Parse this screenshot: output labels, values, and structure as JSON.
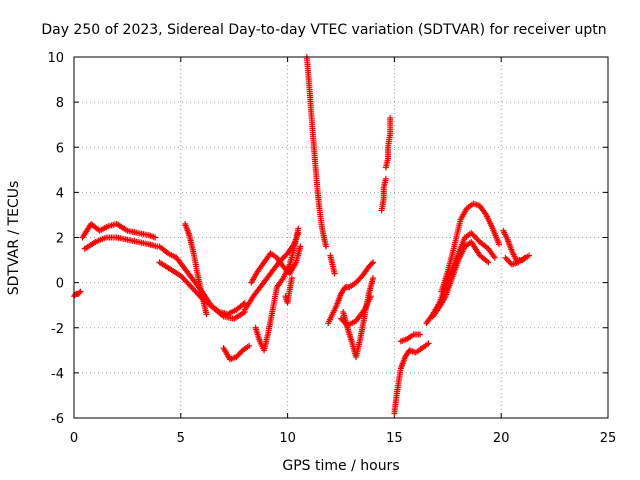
{
  "chart_data": {
    "type": "scatter",
    "title": "Day 250 of 2023, Sidereal Day-to-day VTEC variation (SDTVAR) for receiver uptn",
    "xlabel": "GPS time / hours",
    "ylabel": "SDTVAR / TECUs",
    "xlim": [
      0,
      25
    ],
    "ylim": [
      -6,
      10
    ],
    "xticks": [
      0,
      5,
      10,
      15,
      20,
      25
    ],
    "yticks": [
      -6,
      -4,
      -2,
      0,
      2,
      4,
      6,
      8,
      10
    ],
    "xtick_labels": [
      "0",
      "5",
      "10",
      "15",
      "20",
      "25"
    ],
    "ytick_labels": [
      "-6",
      "-4",
      "-2",
      "0",
      "2",
      "4",
      "6",
      "8",
      "10"
    ],
    "grid": true,
    "marker": "+",
    "color": "#ff0000",
    "series": [
      {
        "name": "SDTVAR",
        "tracks": [
          [
            [
              0.0,
              -0.6
            ],
            [
              0.1,
              -0.5
            ],
            [
              0.2,
              -0.5
            ],
            [
              0.3,
              -0.4
            ]
          ],
          [
            [
              0.4,
              2.0
            ],
            [
              0.8,
              2.6
            ],
            [
              1.2,
              2.3
            ],
            [
              1.6,
              2.5
            ],
            [
              2.0,
              2.6
            ],
            [
              2.5,
              2.3
            ],
            [
              3.0,
              2.2
            ],
            [
              3.5,
              2.1
            ],
            [
              3.8,
              2.0
            ]
          ],
          [
            [
              0.5,
              1.5
            ],
            [
              1.0,
              1.8
            ],
            [
              1.5,
              2.0
            ],
            [
              2.0,
              2.0
            ],
            [
              2.5,
              1.9
            ],
            [
              3.0,
              1.8
            ],
            [
              3.5,
              1.7
            ],
            [
              3.9,
              1.6
            ]
          ],
          [
            [
              4.0,
              1.6
            ],
            [
              4.4,
              1.3
            ],
            [
              4.8,
              1.1
            ],
            [
              5.2,
              0.6
            ],
            [
              5.6,
              0.1
            ],
            [
              6.0,
              -0.4
            ],
            [
              6.4,
              -1.0
            ],
            [
              6.8,
              -1.3
            ],
            [
              7.2,
              -1.4
            ],
            [
              7.6,
              -1.2
            ],
            [
              8.0,
              -0.9
            ]
          ],
          [
            [
              4.0,
              0.9
            ],
            [
              4.5,
              0.6
            ],
            [
              5.0,
              0.3
            ],
            [
              5.5,
              -0.2
            ],
            [
              6.0,
              -0.7
            ],
            [
              6.5,
              -1.1
            ],
            [
              7.0,
              -1.5
            ],
            [
              7.5,
              -1.6
            ],
            [
              8.0,
              -1.3
            ]
          ],
          [
            [
              5.2,
              2.6
            ],
            [
              5.4,
              2.1
            ],
            [
              5.6,
              1.3
            ],
            [
              5.8,
              0.3
            ],
            [
              6.0,
              -0.6
            ],
            [
              6.2,
              -1.4
            ]
          ],
          [
            [
              7.0,
              -2.9
            ],
            [
              7.3,
              -3.4
            ],
            [
              7.6,
              -3.3
            ],
            [
              7.9,
              -3.0
            ],
            [
              8.2,
              -2.8
            ]
          ],
          [
            [
              8.0,
              -1.2
            ],
            [
              8.4,
              -0.6
            ],
            [
              8.8,
              -0.1
            ],
            [
              9.2,
              0.4
            ],
            [
              9.6,
              0.9
            ],
            [
              10.0,
              1.3
            ],
            [
              10.3,
              1.7
            ],
            [
              10.5,
              2.2
            ]
          ],
          [
            [
              8.3,
              0.0
            ],
            [
              8.6,
              0.5
            ],
            [
              8.9,
              0.9
            ],
            [
              9.2,
              1.3
            ],
            [
              9.5,
              1.1
            ],
            [
              9.8,
              0.7
            ],
            [
              10.1,
              0.4
            ],
            [
              10.4,
              0.9
            ],
            [
              10.6,
              1.6
            ]
          ],
          [
            [
              8.5,
              -2.0
            ],
            [
              8.7,
              -2.6
            ],
            [
              8.9,
              -3.0
            ],
            [
              9.1,
              -2.2
            ],
            [
              9.3,
              -1.2
            ],
            [
              9.5,
              -0.2
            ],
            [
              9.8,
              0.2
            ],
            [
              10.1,
              0.8
            ],
            [
              10.3,
              1.5
            ],
            [
              10.5,
              2.4
            ]
          ],
          [
            [
              9.9,
              -0.6
            ],
            [
              10.0,
              -0.9
            ],
            [
              10.1,
              -0.3
            ],
            [
              10.2,
              0.2
            ]
          ],
          [
            [
              10.9,
              10.0
            ],
            [
              11.0,
              8.9
            ],
            [
              11.1,
              7.6
            ],
            [
              11.2,
              6.4
            ],
            [
              11.3,
              5.2
            ],
            [
              11.4,
              4.1
            ],
            [
              11.5,
              3.2
            ],
            [
              11.6,
              2.5
            ],
            [
              11.7,
              2.0
            ],
            [
              11.8,
              1.6
            ]
          ],
          [
            [
              12.0,
              1.2
            ],
            [
              12.1,
              0.8
            ],
            [
              12.2,
              0.4
            ]
          ],
          [
            [
              11.9,
              -1.8
            ],
            [
              12.1,
              -1.4
            ],
            [
              12.3,
              -1.0
            ],
            [
              12.5,
              -0.5
            ],
            [
              12.7,
              -0.2
            ],
            [
              12.9,
              -0.2
            ],
            [
              13.2,
              0.0
            ],
            [
              13.5,
              0.3
            ],
            [
              13.8,
              0.7
            ],
            [
              14.0,
              0.9
            ]
          ],
          [
            [
              12.6,
              -1.3
            ],
            [
              12.8,
              -2.0
            ],
            [
              13.0,
              -2.6
            ],
            [
              13.2,
              -3.3
            ],
            [
              13.4,
              -2.5
            ],
            [
              13.6,
              -1.5
            ],
            [
              13.8,
              -0.5
            ],
            [
              14.0,
              0.2
            ]
          ],
          [
            [
              12.5,
              -1.6
            ],
            [
              12.8,
              -1.9
            ],
            [
              13.2,
              -1.7
            ],
            [
              13.6,
              -1.2
            ],
            [
              13.9,
              -0.6
            ]
          ],
          [
            [
              14.4,
              3.2
            ],
            [
              14.5,
              3.7
            ],
            [
              14.5,
              4.2
            ],
            [
              14.6,
              4.6
            ]
          ],
          [
            [
              14.6,
              5.1
            ],
            [
              14.7,
              5.5
            ],
            [
              14.7,
              6.0
            ],
            [
              14.8,
              6.6
            ],
            [
              14.8,
              7.3
            ]
          ],
          [
            [
              15.0,
              -5.8
            ],
            [
              15.1,
              -5.0
            ],
            [
              15.2,
              -4.4
            ],
            [
              15.3,
              -3.8
            ],
            [
              15.5,
              -3.3
            ],
            [
              15.7,
              -3.0
            ],
            [
              16.0,
              -3.1
            ],
            [
              16.3,
              -2.9
            ],
            [
              16.6,
              -2.7
            ]
          ],
          [
            [
              15.3,
              -2.6
            ],
            [
              15.6,
              -2.5
            ],
            [
              15.9,
              -2.3
            ],
            [
              16.2,
              -2.3
            ]
          ],
          [
            [
              16.5,
              -1.8
            ],
            [
              16.8,
              -1.4
            ],
            [
              17.1,
              -0.9
            ],
            [
              17.4,
              -0.2
            ],
            [
              17.7,
              0.6
            ],
            [
              18.0,
              1.3
            ],
            [
              18.3,
              2.0
            ],
            [
              18.6,
              2.2
            ],
            [
              19.0,
              1.8
            ],
            [
              19.4,
              1.5
            ],
            [
              19.7,
              1.1
            ]
          ],
          [
            [
              16.8,
              -1.5
            ],
            [
              17.1,
              -1.1
            ],
            [
              17.4,
              -0.6
            ],
            [
              17.7,
              0.2
            ],
            [
              18.0,
              1.0
            ],
            [
              18.3,
              1.6
            ],
            [
              18.6,
              1.8
            ],
            [
              19.0,
              1.2
            ],
            [
              19.4,
              0.9
            ]
          ],
          [
            [
              17.2,
              -0.4
            ],
            [
              17.5,
              0.5
            ],
            [
              17.8,
              1.6
            ],
            [
              18.1,
              2.8
            ],
            [
              18.4,
              3.3
            ],
            [
              18.7,
              3.5
            ],
            [
              19.0,
              3.4
            ],
            [
              19.3,
              3.0
            ],
            [
              19.6,
              2.4
            ],
            [
              19.9,
              1.7
            ]
          ],
          [
            [
              20.1,
              2.3
            ],
            [
              20.3,
              1.9
            ],
            [
              20.5,
              1.4
            ],
            [
              20.7,
              1.0
            ],
            [
              21.0,
              1.0
            ],
            [
              21.3,
              1.2
            ]
          ],
          [
            [
              20.2,
              1.1
            ],
            [
              20.5,
              0.8
            ],
            [
              20.8,
              0.9
            ],
            [
              21.1,
              1.1
            ]
          ]
        ]
      }
    ]
  }
}
